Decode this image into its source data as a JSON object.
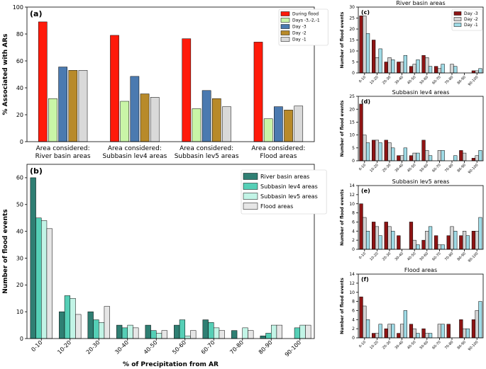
{
  "colors": {
    "during_flood": "#ff1a0a",
    "days_multi": "#c9f5a7",
    "day3_a": "#4b7ab0",
    "day2_a": "#b88a2a",
    "day1_a": "#d9d9d9",
    "river": "#2f7f73",
    "lev4": "#55cfb6",
    "lev5": "#c2f4e6",
    "flood": "#e6e6e6",
    "day3_s": "#8e1414",
    "day2_s": "#d3d3d3",
    "day1_s": "#9fdbe6"
  },
  "chart_data": [
    {
      "panel": "(a)",
      "type": "bar",
      "ylabel": "% Associated with ARs",
      "ylim": [
        0,
        100
      ],
      "yticks": [
        "0",
        "20",
        "40",
        "60",
        "80",
        "100"
      ],
      "categories": [
        "Area considered: River basin areas",
        "Area considered: Subbasin lev4 areas",
        "Area considered: Subbasin lev5 areas",
        "Area considered: Flood areas"
      ],
      "category_lines": [
        [
          "Area considered:",
          "River basin areas"
        ],
        [
          "Area considered:",
          "Subbasin lev4 areas"
        ],
        [
          "Area considered:",
          "Subbasin lev5 areas"
        ],
        [
          "Area considered:",
          "Flood areas"
        ]
      ],
      "legend": "top-right",
      "series": [
        {
          "name": "During flood",
          "color_key": "during_flood",
          "values": [
            89,
            79,
            76.5,
            74
          ]
        },
        {
          "name": "Days -3,-2,-1",
          "color_key": "days_multi",
          "values": [
            32,
            30,
            24.5,
            17
          ]
        },
        {
          "name": "Day -3",
          "color_key": "day3_a",
          "values": [
            55.5,
            48.5,
            38,
            26
          ]
        },
        {
          "name": "Day -2",
          "color_key": "day2_a",
          "values": [
            53,
            35.5,
            32,
            23.5
          ]
        },
        {
          "name": "Day -1",
          "color_key": "day1_a",
          "values": [
            53,
            33,
            26,
            26.5
          ]
        }
      ]
    },
    {
      "panel": "(b)",
      "type": "bar",
      "xlabel": "% of Precipitation from AR",
      "ylabel": "Number of flood events",
      "ylim": [
        0,
        65
      ],
      "yticks": [
        "0",
        "10",
        "20",
        "30",
        "40",
        "50",
        "60"
      ],
      "categories": [
        "0-10",
        "10-20",
        "20-30",
        "30-40",
        "40-50",
        "50-60",
        "60-70",
        "70-80",
        "80-90",
        "90-100"
      ],
      "legend": "top-right",
      "series": [
        {
          "name": "River basin areas",
          "color_key": "river",
          "values": [
            60,
            10,
            10,
            5,
            5,
            5,
            7,
            3,
            1,
            0
          ]
        },
        {
          "name": "Subbasin lev4 areas",
          "color_key": "lev4",
          "values": [
            45,
            16,
            7,
            4,
            3,
            7,
            6,
            0,
            2,
            4
          ]
        },
        {
          "name": "Subbasin lev5 areas",
          "color_key": "lev5",
          "values": [
            44,
            15,
            6,
            5,
            2,
            1,
            4,
            4,
            5,
            5
          ]
        },
        {
          "name": "Flood areas",
          "color_key": "flood",
          "values": [
            41,
            9,
            12,
            4,
            3,
            3,
            3,
            3,
            5,
            5
          ]
        }
      ]
    },
    {
      "panel": "(c)",
      "type": "bar",
      "title": "River basin areas",
      "ylabel": "Number of flood events",
      "ylim": [
        0,
        30
      ],
      "yticks": [
        "0",
        "5",
        "10",
        "15",
        "20",
        "25",
        "30"
      ],
      "categories": [
        "0-10",
        "10-20",
        "20-30",
        "30-40",
        "40-50",
        "50-60",
        "60-70",
        "70-80",
        "80-90",
        "90-100"
      ],
      "legend": "top-right",
      "series": [
        {
          "name": "Day -3",
          "color_key": "day3_s",
          "values": [
            26,
            15,
            5,
            5,
            3,
            8,
            3,
            0,
            0,
            1
          ]
        },
        {
          "name": "Day -2",
          "color_key": "day2_s",
          "values": [
            26,
            7,
            7,
            5,
            4,
            7,
            2,
            4,
            0,
            1
          ]
        },
        {
          "name": "Day -1",
          "color_key": "day1_s",
          "values": [
            18,
            11,
            6,
            8,
            6,
            3,
            4,
            3,
            0,
            2
          ]
        }
      ]
    },
    {
      "panel": "(d)",
      "type": "bar",
      "title": "Subbasin lev4 areas",
      "ylabel": "Number of flood events",
      "ylim": [
        0,
        25
      ],
      "yticks": [
        "0",
        "5",
        "10",
        "15",
        "20",
        "25"
      ],
      "categories": [
        "0-10",
        "10-20",
        "20-30",
        "30-40",
        "40-50",
        "50-60",
        "60-70",
        "70-80",
        "80-90",
        "90-100"
      ],
      "legend": "none",
      "series": [
        {
          "name": "Day -3",
          "color_key": "day3_s",
          "values": [
            22,
            8,
            8,
            2,
            2,
            8,
            0,
            0,
            4,
            1
          ]
        },
        {
          "name": "Day -2",
          "color_key": "day2_s",
          "values": [
            10,
            8,
            7,
            2,
            3,
            4,
            4,
            0,
            3,
            2
          ]
        },
        {
          "name": "Day -1",
          "color_key": "day1_s",
          "values": [
            7,
            7,
            5,
            5,
            3,
            2,
            4,
            2,
            0,
            4
          ]
        }
      ]
    },
    {
      "panel": "(e)",
      "type": "bar",
      "title": "Subbasin lev5 areas",
      "ylabel": "Number of flood events",
      "ylim": [
        0,
        14
      ],
      "yticks": [
        "0",
        "2",
        "4",
        "6",
        "8",
        "10",
        "12",
        "14"
      ],
      "categories": [
        "0-10",
        "10-20",
        "20-30",
        "30-40",
        "40-50",
        "50-60",
        "60-70",
        "70-80",
        "80-90",
        "90-100"
      ],
      "legend": "none",
      "series": [
        {
          "name": "Day -3",
          "color_key": "day3_s",
          "values": [
            10,
            6,
            6,
            3,
            6,
            2,
            3,
            3,
            3,
            4
          ]
        },
        {
          "name": "Day -2",
          "color_key": "day2_s",
          "values": [
            7,
            5,
            5,
            0,
            2,
            4,
            1,
            5,
            4,
            4
          ]
        },
        {
          "name": "Day -1",
          "color_key": "day1_s",
          "values": [
            4,
            3,
            4,
            0,
            1,
            5,
            1,
            4,
            3,
            7
          ]
        }
      ]
    },
    {
      "panel": "(f)",
      "type": "bar",
      "title": "Flood areas",
      "ylabel": "Number of flood events",
      "ylim": [
        0,
        14
      ],
      "yticks": [
        "0",
        "2",
        "4",
        "6",
        "8",
        "10",
        "12",
        "14"
      ],
      "categories": [
        "0-10",
        "10-20",
        "20-30",
        "30-40",
        "40-50",
        "50-60",
        "60-70",
        "70-80",
        "80-90",
        "90-100"
      ],
      "legend": "none",
      "series": [
        {
          "name": "Day -3",
          "color_key": "day3_s",
          "values": [
            9,
            1,
            2,
            1,
            3,
            2,
            0,
            3,
            4,
            4
          ]
        },
        {
          "name": "Day -2",
          "color_key": "day2_s",
          "values": [
            7,
            1,
            3,
            3,
            2,
            1,
            3,
            0,
            2,
            6
          ]
        },
        {
          "name": "Day -1",
          "color_key": "day1_s",
          "values": [
            4,
            3,
            3,
            6,
            1,
            1,
            3,
            0,
            2,
            8
          ]
        }
      ]
    }
  ]
}
